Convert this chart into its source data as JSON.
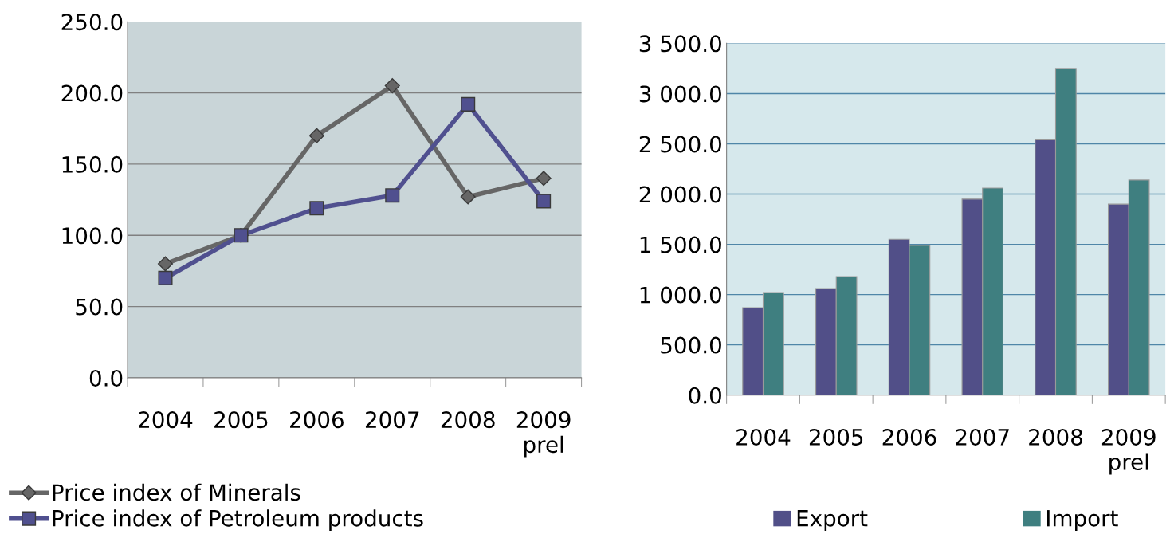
{
  "chart_data": [
    {
      "type": "line",
      "categories": [
        "2004",
        "2005",
        "2006",
        "2007",
        "2008",
        "2009\nprel"
      ],
      "series": [
        {
          "name": "Price index of Minerals",
          "color": "#666666",
          "marker": "diamond",
          "values": [
            80,
            100,
            170,
            205,
            127,
            140
          ]
        },
        {
          "name": "Price index of Petroleum products",
          "color": "#50508f",
          "marker": "square",
          "values": [
            70,
            100,
            119,
            128,
            192,
            124
          ]
        }
      ],
      "ylim": [
        0,
        250
      ],
      "yticks": [
        {
          "value": 0,
          "label": "0.0"
        },
        {
          "value": 50,
          "label": "50.0"
        },
        {
          "value": 100,
          "label": "100.0"
        },
        {
          "value": 150,
          "label": "150.0"
        },
        {
          "value": 200,
          "label": "200.0"
        },
        {
          "value": 250,
          "label": "250.0"
        }
      ],
      "grid": "y",
      "legend": "bottom left",
      "line_style": "solid"
    },
    {
      "type": "bar",
      "categories": [
        "2004",
        "2005",
        "2006",
        "2007",
        "2008",
        "2009\nprel"
      ],
      "series": [
        {
          "name": "Export",
          "color": "#514f88",
          "values": [
            870,
            1060,
            1550,
            1950,
            2540,
            1900
          ]
        },
        {
          "name": "Import",
          "color": "#3f7f80",
          "values": [
            1020,
            1180,
            1490,
            2060,
            3250,
            2140
          ]
        }
      ],
      "ylim": [
        0,
        3500
      ],
      "yticks": [
        {
          "value": 0,
          "label": "0.0"
        },
        {
          "value": 500,
          "label": "500.0"
        },
        {
          "value": 1000,
          "label": "1 000.0"
        },
        {
          "value": 1500,
          "label": "1 500.0"
        },
        {
          "value": 2000,
          "label": "2 000.0"
        },
        {
          "value": 2500,
          "label": "2 500.0"
        },
        {
          "value": 3000,
          "label": "3 000.0"
        },
        {
          "value": 3500,
          "label": "3 500.0"
        }
      ],
      "grid": "y",
      "legend": "bottom"
    }
  ]
}
